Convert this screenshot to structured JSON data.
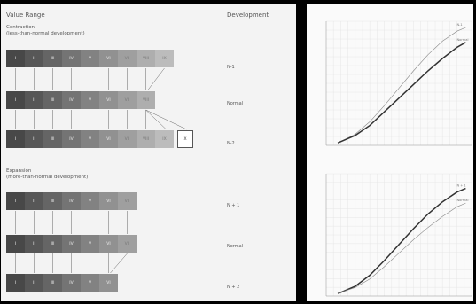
{
  "colors": {
    "background": "#000000",
    "panel": "#f3f3f3",
    "chart_bg": "#fafafa"
  },
  "left": {
    "header": {
      "value_range": "Value Range",
      "development": "Development"
    },
    "contraction": {
      "title": "Contraction",
      "subtitle": "(less-than-normal development)"
    },
    "expansion": {
      "title": "Expansion",
      "subtitle": "(more-than-normal development)"
    },
    "rows": [
      {
        "label": "N-1",
        "cells": [
          "I",
          "II",
          "III",
          "IV",
          "V",
          "VI",
          "VII",
          "VIII",
          "IX"
        ]
      },
      {
        "label": "Normal",
        "cells": [
          "I",
          "II",
          "III",
          "IV",
          "V",
          "VI",
          "VII",
          "VIII"
        ]
      },
      {
        "label": "N-2",
        "cells": [
          "I",
          "II",
          "III",
          "IV",
          "V",
          "VI",
          "VII",
          "VIII",
          "IX",
          "X"
        ]
      },
      {
        "label": "N + 1",
        "cells": [
          "I",
          "II",
          "III",
          "IV",
          "V",
          "VI",
          "VII"
        ]
      },
      {
        "label": "Normal",
        "cells": [
          "I",
          "II",
          "III",
          "IV",
          "V",
          "VI",
          "VII"
        ]
      },
      {
        "label": "N + 2",
        "cells": [
          "I",
          "II",
          "III",
          "IV",
          "V",
          "VI"
        ]
      }
    ]
  },
  "chart_data": [
    {
      "type": "line",
      "xlabel": "",
      "ylabel": "",
      "xlim": [
        0,
        10
      ],
      "ylim": [
        0,
        10
      ],
      "grid": true,
      "series": [
        {
          "name": "N-1",
          "color": "#888888",
          "width": 0.6,
          "x": [
            0.8,
            1,
            2,
            3,
            4,
            5,
            6,
            7,
            8,
            9,
            9.6
          ],
          "y": [
            0.2,
            0.3,
            0.9,
            1.9,
            3.2,
            4.6,
            6.0,
            7.3,
            8.4,
            9.2,
            9.5
          ]
        },
        {
          "name": "Normal",
          "color": "#333333",
          "width": 1.5,
          "x": [
            0.8,
            1,
            2,
            3,
            4,
            5,
            6,
            7,
            8,
            9,
            9.6
          ],
          "y": [
            0.2,
            0.3,
            0.8,
            1.6,
            2.7,
            3.8,
            4.9,
            6.0,
            7.0,
            7.9,
            8.3
          ]
        }
      ]
    },
    {
      "type": "line",
      "xlabel": "",
      "ylabel": "",
      "xlim": [
        0,
        10
      ],
      "ylim": [
        0,
        10
      ],
      "grid": true,
      "series": [
        {
          "name": "N + 1",
          "color": "#333333",
          "width": 1.5,
          "x": [
            0.8,
            1,
            2,
            3,
            4,
            5,
            6,
            7,
            8,
            9,
            9.6
          ],
          "y": [
            0.2,
            0.3,
            0.8,
            1.7,
            2.9,
            4.2,
            5.5,
            6.7,
            7.7,
            8.5,
            8.8
          ]
        },
        {
          "name": "Normal",
          "color": "#888888",
          "width": 0.6,
          "x": [
            0.8,
            1,
            2,
            3,
            4,
            5,
            6,
            7,
            8,
            9,
            9.6
          ],
          "y": [
            0.2,
            0.3,
            0.7,
            1.4,
            2.4,
            3.5,
            4.6,
            5.6,
            6.5,
            7.3,
            7.6
          ]
        }
      ]
    }
  ]
}
